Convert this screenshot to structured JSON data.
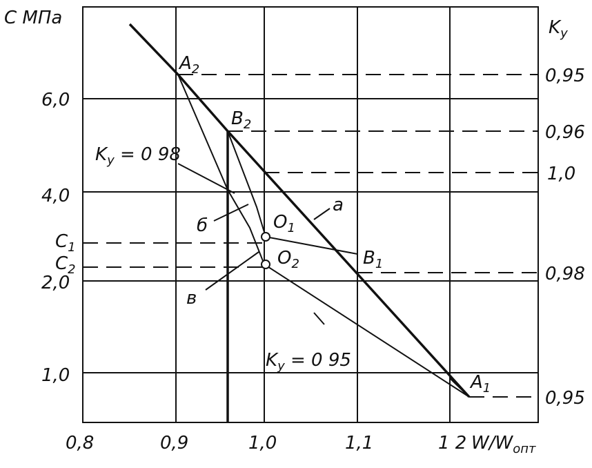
{
  "axes": {
    "left_title": "C МПа",
    "right_title": {
      "main": "K",
      "sub": "y"
    },
    "x_title": {
      "main": "W/W",
      "sub": "опт"
    }
  },
  "y_labels": [
    "6,0",
    "4,0",
    "2,0",
    "1,0"
  ],
  "c_labels": [
    {
      "main": "C",
      "sub": "1"
    },
    {
      "main": "C",
      "sub": "2"
    }
  ],
  "x_labels": [
    "0,8",
    "0,9",
    "1,0",
    "1,1",
    "1 2"
  ],
  "right_labels": [
    "0,95",
    "0,96",
    "1,0",
    "0,98",
    "0,95"
  ],
  "points": [
    {
      "main": "A",
      "sub": "2"
    },
    {
      "main": "B",
      "sub": "2"
    },
    {
      "main": "O",
      "sub": "1"
    },
    {
      "main": "O",
      "sub": "2"
    },
    {
      "main": "B",
      "sub": "1"
    },
    {
      "main": "A",
      "sub": "1"
    }
  ],
  "annotations": [
    {
      "main": "K",
      "sub": "y",
      "rest": " = 0 98"
    },
    {
      "main": "K",
      "sub": "y",
      "rest": " = 0 95"
    }
  ],
  "curve_labels": [
    "a",
    "б",
    "в"
  ]
}
